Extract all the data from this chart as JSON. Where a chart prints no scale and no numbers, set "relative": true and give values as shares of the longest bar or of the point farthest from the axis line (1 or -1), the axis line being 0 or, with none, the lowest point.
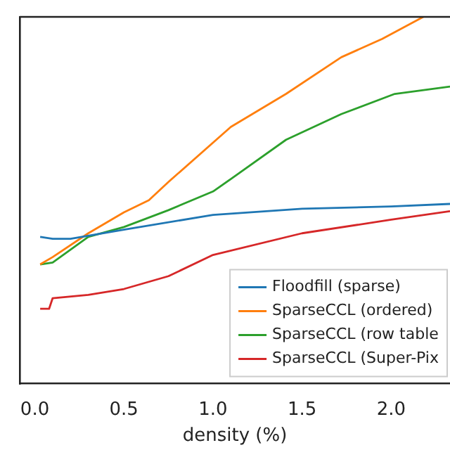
{
  "chart_data": {
    "type": "line",
    "xlabel": "density (%)",
    "relative": true,
    "tick_labels": "x",
    "legend": "bottom right",
    "marker": "none",
    "xlim": [
      -0.085,
      2.33
    ],
    "xticks": [
      {
        "value": 0,
        "label": "0.0"
      },
      {
        "value": 0.5,
        "label": "0.5"
      },
      {
        "value": 1,
        "label": "1.0"
      },
      {
        "value": 1.5,
        "label": "1.5"
      },
      {
        "value": 2,
        "label": "2.0"
      }
    ],
    "series": [
      {
        "name": "Floodfill (sparse)",
        "color": "#1f77b4",
        "x": [
          0.03,
          0.1,
          0.2,
          0.5,
          1.0,
          1.5,
          2.0,
          2.33
        ],
        "values": [
          0.4,
          0.395,
          0.395,
          0.42,
          0.46,
          0.477,
          0.483,
          0.49
        ]
      },
      {
        "name": "SparseCCL (ordered)",
        "color": "#ff7f0e",
        "x": [
          0.03,
          0.1,
          0.3,
          0.5,
          0.64,
          0.75,
          1.1,
          1.41,
          1.72,
          1.95,
          2.18
        ],
        "values": [
          0.325,
          0.345,
          0.41,
          0.467,
          0.5,
          0.55,
          0.7,
          0.79,
          0.89,
          0.94,
          1.0
        ]
      },
      {
        "name": "SparseCCL (row table",
        "color": "#2ca02c",
        "x": [
          0.03,
          0.1,
          0.3,
          0.5,
          0.75,
          1.0,
          1.1,
          1.41,
          1.72,
          2.02,
          2.33
        ],
        "values": [
          0.325,
          0.33,
          0.4,
          0.427,
          0.473,
          0.524,
          0.558,
          0.665,
          0.735,
          0.79,
          0.81
        ]
      },
      {
        "name": "SparseCCL (Super-Pix",
        "color": "#d62728",
        "x": [
          0.03,
          0.08,
          0.1,
          0.3,
          0.5,
          0.75,
          1.0,
          1.5,
          2.0,
          2.33
        ],
        "values": [
          0.204,
          0.204,
          0.233,
          0.242,
          0.258,
          0.293,
          0.351,
          0.41,
          0.447,
          0.47
        ]
      }
    ]
  }
}
